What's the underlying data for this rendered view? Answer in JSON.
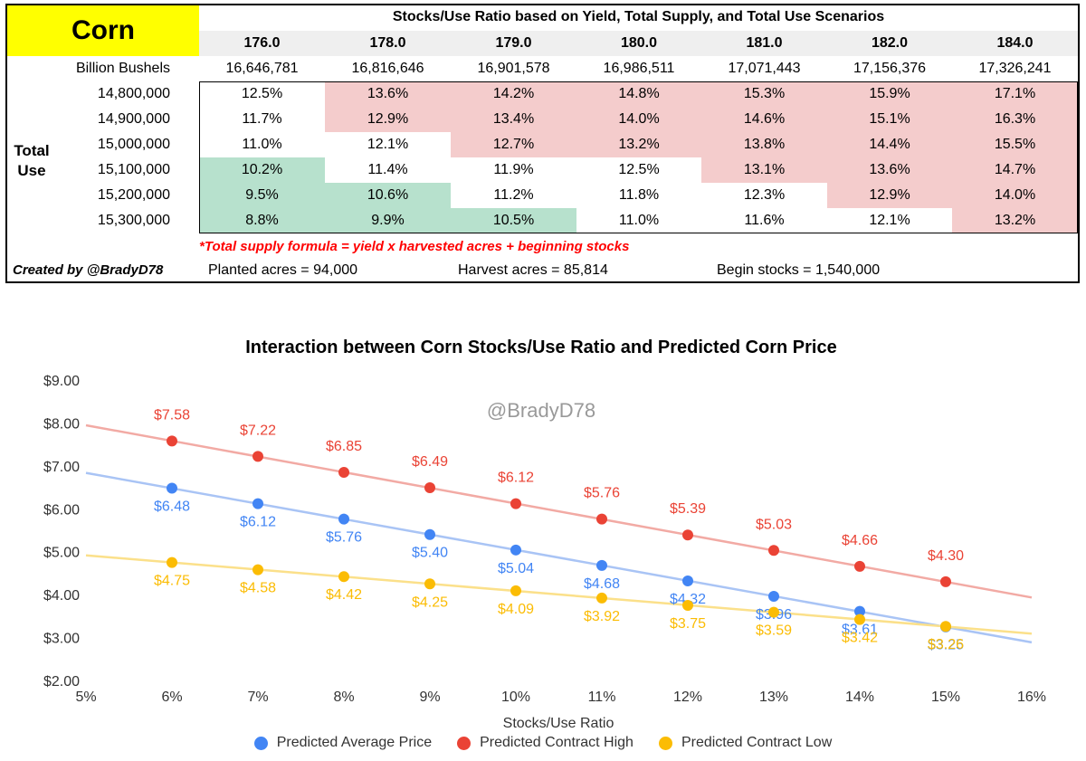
{
  "table": {
    "corn_label": "Corn",
    "title": "Stocks/Use Ratio based on Yield, Total Supply, and Total Use Scenarios",
    "yields": [
      "176.0",
      "178.0",
      "179.0",
      "180.0",
      "181.0",
      "182.0",
      "184.0"
    ],
    "supply_label": "Billion Bushels",
    "supplies": [
      "16,646,781",
      "16,816,646",
      "16,901,578",
      "16,986,511",
      "17,071,443",
      "17,156,376",
      "17,326,241"
    ],
    "total_use_label": "Total Use",
    "rows": [
      {
        "use": "14,800,000",
        "values": [
          "12.5%",
          "13.6%",
          "14.2%",
          "14.8%",
          "15.3%",
          "15.9%",
          "17.1%"
        ],
        "shade": [
          "",
          "red",
          "red",
          "red",
          "red",
          "red",
          "red"
        ]
      },
      {
        "use": "14,900,000",
        "values": [
          "11.7%",
          "12.9%",
          "13.4%",
          "14.0%",
          "14.6%",
          "15.1%",
          "16.3%"
        ],
        "shade": [
          "",
          "red",
          "red",
          "red",
          "red",
          "red",
          "red"
        ]
      },
      {
        "use": "15,000,000",
        "values": [
          "11.0%",
          "12.1%",
          "12.7%",
          "13.2%",
          "13.8%",
          "14.4%",
          "15.5%"
        ],
        "shade": [
          "",
          "",
          "red",
          "red",
          "red",
          "red",
          "red"
        ]
      },
      {
        "use": "15,100,000",
        "values": [
          "10.2%",
          "11.4%",
          "11.9%",
          "12.5%",
          "13.1%",
          "13.6%",
          "14.7%"
        ],
        "shade": [
          "green",
          "",
          "",
          "",
          "red",
          "red",
          "red"
        ]
      },
      {
        "use": "15,200,000",
        "values": [
          "9.5%",
          "10.6%",
          "11.2%",
          "11.8%",
          "12.3%",
          "12.9%",
          "14.0%"
        ],
        "shade": [
          "green",
          "green",
          "",
          "",
          "",
          "red",
          "red"
        ]
      },
      {
        "use": "15,300,000",
        "values": [
          "8.8%",
          "9.9%",
          "10.5%",
          "11.0%",
          "11.6%",
          "12.1%",
          "13.2%"
        ],
        "shade": [
          "green",
          "green",
          "green",
          "",
          "",
          "",
          "red"
        ]
      }
    ],
    "note": "*Total supply formula = yield x harvested acres + beginning stocks",
    "credit": "Created by @BradyD78",
    "planted": "Planted acres =  94,000",
    "harvest": "Harvest acres =  85,814",
    "begin": "Begin stocks =  1,540,000",
    "colors": {
      "red": "#f4cccc",
      "green": "#b7e1cd",
      "header": "#efefef",
      "corn": "#ffff00",
      "note": "#ff0000"
    }
  },
  "chart_data": {
    "type": "scatter",
    "title": "Interaction between Corn Stocks/Use Ratio and Predicted Corn Price",
    "watermark": "@BradyD78",
    "xlabel": "Stocks/Use Ratio",
    "ylabel": "",
    "xlim": [
      5,
      16
    ],
    "ylim": [
      2,
      9
    ],
    "x_ticks": [
      "5%",
      "6%",
      "7%",
      "8%",
      "9%",
      "10%",
      "11%",
      "12%",
      "13%",
      "14%",
      "15%",
      "16%"
    ],
    "y_ticks": [
      "$2.00",
      "$3.00",
      "$4.00",
      "$5.00",
      "$6.00",
      "$7.00",
      "$8.00",
      "$9.00"
    ],
    "x": [
      6,
      7,
      8,
      9,
      10,
      11,
      12,
      13,
      14,
      15
    ],
    "trendlines": true,
    "series": [
      {
        "name": "Predicted Average Price",
        "color": "#4285f4",
        "line_color": "#a9c4f5",
        "values": [
          6.48,
          6.12,
          5.76,
          5.4,
          5.04,
          4.68,
          4.32,
          3.96,
          3.61,
          3.25
        ],
        "labels": [
          "$6.48",
          "$6.12",
          "$5.76",
          "$5.40",
          "$5.04",
          "$4.68",
          "$4.32",
          "$3.96",
          "$3.61",
          "$3.25"
        ],
        "label_pos": "below"
      },
      {
        "name": "Predicted Contract High",
        "color": "#ea4335",
        "line_color": "#f2aaa4",
        "values": [
          7.58,
          7.22,
          6.85,
          6.49,
          6.12,
          5.76,
          5.39,
          5.03,
          4.66,
          4.3
        ],
        "labels": [
          "$7.58",
          "$7.22",
          "$6.85",
          "$6.49",
          "$6.12",
          "$5.76",
          "$5.39",
          "$5.03",
          "$4.66",
          "$4.30"
        ],
        "label_pos": "above"
      },
      {
        "name": "Predicted Contract Low",
        "color": "#fbbc04",
        "line_color": "#fbe08a",
        "values": [
          4.75,
          4.58,
          4.42,
          4.25,
          4.09,
          3.92,
          3.75,
          3.59,
          3.42,
          3.26
        ],
        "labels": [
          "$4.75",
          "$4.58",
          "$4.42",
          "$4.25",
          "$4.09",
          "$3.92",
          "$3.75",
          "$3.59",
          "$3.42",
          "$3.26"
        ],
        "label_pos": "below"
      }
    ],
    "legend": "bottom"
  }
}
